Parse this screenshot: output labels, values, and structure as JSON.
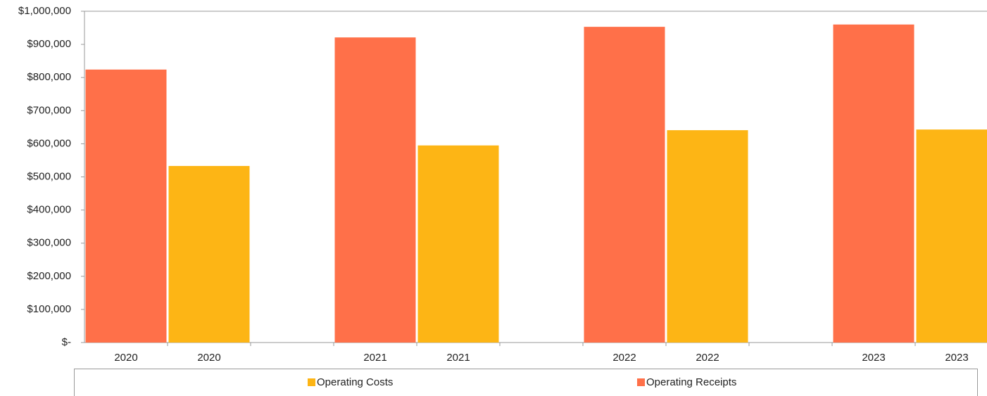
{
  "chart_data": {
    "type": "bar",
    "categories": [
      "2020",
      "2020",
      null,
      "2021",
      "2021",
      null,
      "2022",
      "2022",
      null,
      "2023",
      "2023"
    ],
    "series": [
      {
        "name": "Operating Costs",
        "color": "#fdb515",
        "values": [
          null,
          533000,
          null,
          null,
          595000,
          null,
          null,
          641000,
          null,
          null,
          643000
        ]
      },
      {
        "name": "Operating Receipts",
        "color": "#ff7049",
        "values": [
          824000,
          null,
          null,
          921000,
          null,
          null,
          953000,
          null,
          null,
          960000,
          null
        ]
      }
    ],
    "ylim": [
      0,
      1000000
    ],
    "yticks": [
      {
        "value": 0,
        "label": "$-"
      },
      {
        "value": 100000,
        "label": "$100,000"
      },
      {
        "value": 200000,
        "label": "$200,000"
      },
      {
        "value": 300000,
        "label": "$300,000"
      },
      {
        "value": 400000,
        "label": "$400,000"
      },
      {
        "value": 500000,
        "label": "$500,000"
      },
      {
        "value": 600000,
        "label": "$600,000"
      },
      {
        "value": 700000,
        "label": "$700,000"
      },
      {
        "value": 800000,
        "label": "$800,000"
      },
      {
        "value": 900000,
        "label": "$900,000"
      },
      {
        "value": 1000000,
        "label": "$1,000,000"
      }
    ],
    "grid": false,
    "legend": "bottom"
  }
}
